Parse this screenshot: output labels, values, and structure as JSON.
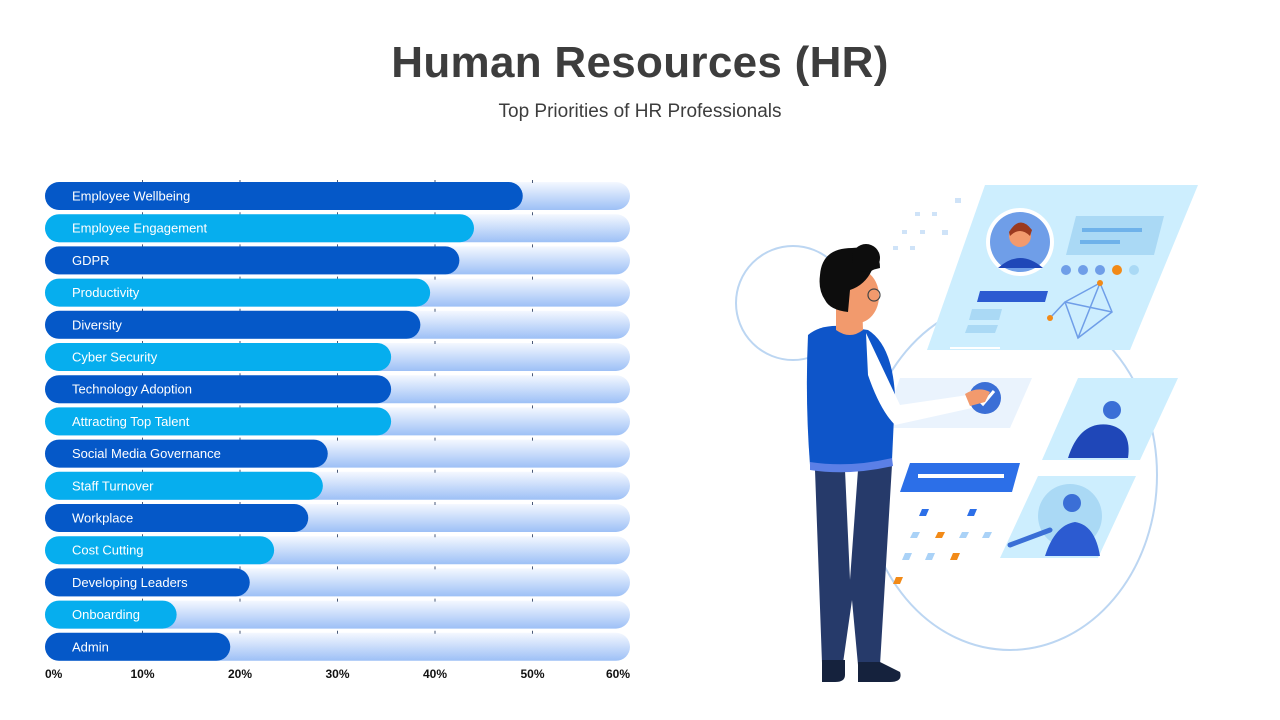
{
  "colors": {
    "bar_dark": "#0558c8",
    "bar_light": "#06aeee",
    "track_top": "#f4f8ff",
    "track_bottom": "#9dc0f6",
    "title": "#3d3d3d"
  },
  "chart_data": {
    "type": "bar",
    "orientation": "horizontal",
    "title": "Human Resources (HR)",
    "subtitle": "Top Priorities of HR Professionals",
    "xlim": [
      0,
      60
    ],
    "xticks": [
      "0%",
      "10%",
      "20%",
      "30%",
      "40%",
      "50%",
      "60%"
    ],
    "grid": true,
    "categories": [
      "Employee Wellbeing",
      "Employee Engagement",
      "GDPR",
      "Productivity",
      "Diversity",
      "Cyber Security",
      "Technology Adoption",
      "Attracting Top Talent",
      "Social Media Governance",
      "Staff Turnover",
      "Workplace",
      "Cost Cutting",
      "Developing Leaders",
      "Onboarding",
      "Admin"
    ],
    "values": [
      49,
      44,
      42.5,
      39.5,
      38.5,
      35.5,
      35.5,
      35.5,
      29,
      28.5,
      27,
      23.5,
      21,
      13.5,
      19
    ]
  }
}
